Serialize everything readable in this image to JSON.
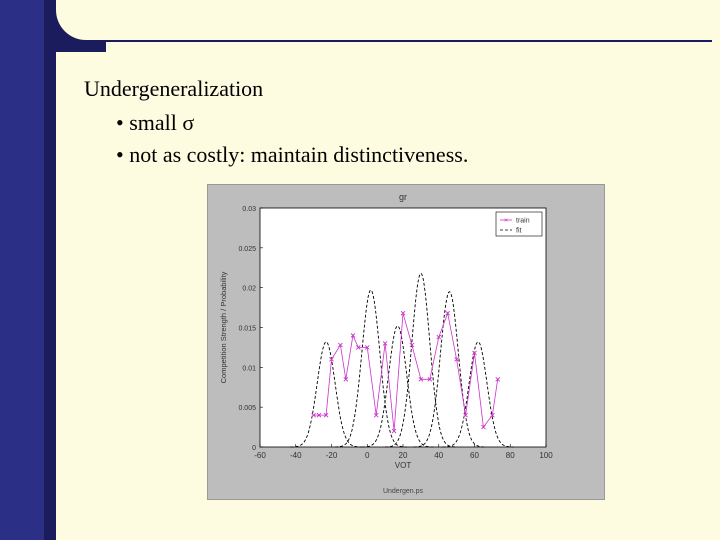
{
  "slide": {
    "heading": "Undergeneralization",
    "bullets": [
      "• small σ",
      "• not as costly: maintain distinctiveness."
    ]
  },
  "chart_data": {
    "type": "line",
    "title": "gr",
    "xlabel": "VOT",
    "ylabel": "Competition Strength / Probability",
    "caption": "Undergen.ps",
    "xlim": [
      -60,
      100
    ],
    "ylim": [
      0,
      0.03
    ],
    "x_ticks": [
      -60,
      -40,
      -20,
      0,
      20,
      40,
      60,
      80,
      100
    ],
    "y_ticks": [
      "0",
      "0.005",
      "0.01",
      "0.015",
      "0.02",
      "0.025",
      "0.03"
    ],
    "legend": [
      "train",
      "fit"
    ],
    "legend_position": "top-right",
    "grid": false,
    "series": [
      {
        "name": "train",
        "color": "#cc33cc",
        "x": [
          -30,
          -27,
          -23,
          -20,
          -15,
          -12,
          -8,
          -5,
          0,
          5,
          10,
          15,
          20,
          25,
          30,
          35,
          40,
          45,
          50,
          55,
          60,
          65,
          70,
          73
        ],
        "y": [
          0.004,
          0.004,
          0.004,
          0.011,
          0.0128,
          0.0085,
          0.014,
          0.0125,
          0.0125,
          0.004,
          0.013,
          0.002,
          0.0168,
          0.0128,
          0.0085,
          0.0085,
          0.0138,
          0.0168,
          0.011,
          0.004,
          0.0118,
          0.0025,
          0.004,
          0.0085
        ]
      },
      {
        "name": "fit",
        "color": "#000000",
        "components": [
          {
            "mean": -23,
            "sd": 5,
            "peak": 0.0132
          },
          {
            "mean": 2,
            "sd": 5,
            "peak": 0.0197
          },
          {
            "mean": 17,
            "sd": 5,
            "peak": 0.0152
          },
          {
            "mean": 30,
            "sd": 5,
            "peak": 0.0218
          },
          {
            "mean": 46,
            "sd": 5,
            "peak": 0.0195
          },
          {
            "mean": 62,
            "sd": 5,
            "peak": 0.0132
          }
        ]
      }
    ]
  }
}
